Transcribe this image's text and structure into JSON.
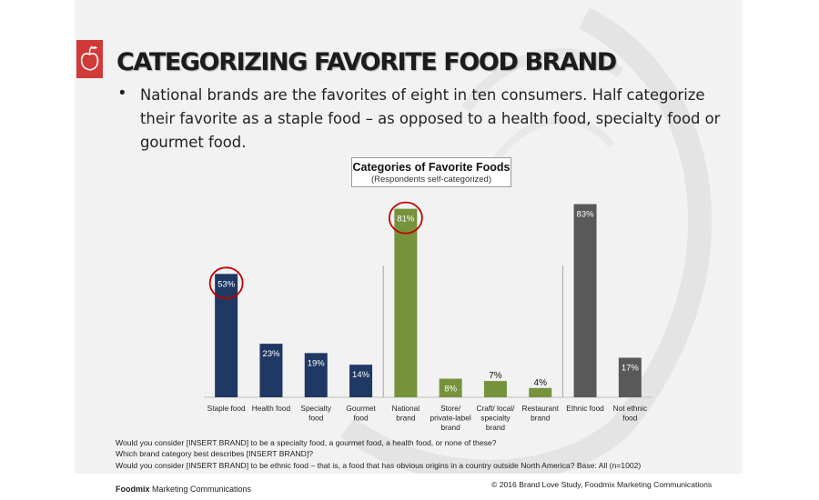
{
  "slide": {
    "title": "CATEGORIZING FAVORITE FOOD BRAND",
    "bullet": "National brands are the favorites of eight in ten consumers. Half categorize their favorite as a staple food – as opposed to a health food, specialty food or gourmet food.",
    "notes": [
      "Would you consider [INSERT BRAND] to be a specialty food, a gourmet food, a health food, or none of these?",
      "Which brand category best describes [INSERT BRAND]?",
      "Would you consider [INSERT BRAND] to be ethnic food – that is, a food that has obvious origins in a country outside North America? Base: All (n=1002)"
    ],
    "copyright": "© 2016 Brand Love Study, Foodmix Marketing Communications",
    "footer_brand_bold": "Foodmix",
    "footer_brand_rest": " Marketing Communications"
  },
  "chart_data": {
    "type": "bar",
    "title": "Categories of Favorite Foods",
    "subtitle": "(Respondents self-categorized)",
    "ylim": [
      0,
      100
    ],
    "grid": false,
    "legend": "none",
    "categories": [
      "Staple food",
      "Health food",
      "Specialty food",
      "Gourmet food",
      "National brand",
      "Store/ private-label brand",
      "Craft/ local/ specialty brand",
      "Restaurant brand",
      "Ethnic food",
      "Not ethnic food"
    ],
    "category_lines": [
      [
        "Staple food"
      ],
      [
        "Health food"
      ],
      [
        "Specialty",
        "food"
      ],
      [
        "Gourmet",
        "food"
      ],
      [
        "National",
        "brand"
      ],
      [
        "Store/",
        "private-label",
        "brand"
      ],
      [
        "Craft/ local/",
        "specialty",
        "brand"
      ],
      [
        "Restaurant",
        "brand"
      ],
      [
        "Ethnic food"
      ],
      [
        "Not ethnic",
        "food"
      ]
    ],
    "values": [
      53,
      23,
      19,
      14,
      81,
      8,
      7,
      4,
      83,
      17
    ],
    "labels": [
      "53%",
      "23%",
      "19%",
      "14%",
      "81%",
      "8%",
      "7%",
      "4%",
      "83%",
      "17%"
    ],
    "groups": [
      {
        "indices": [
          0,
          1,
          2,
          3
        ],
        "color": "#1f3864"
      },
      {
        "indices": [
          4,
          5,
          6,
          7
        ],
        "color": "#76933c"
      },
      {
        "indices": [
          8,
          9
        ],
        "color": "#595959"
      }
    ],
    "highlighted": [
      0,
      4
    ],
    "highlight_color": "#c00000"
  }
}
